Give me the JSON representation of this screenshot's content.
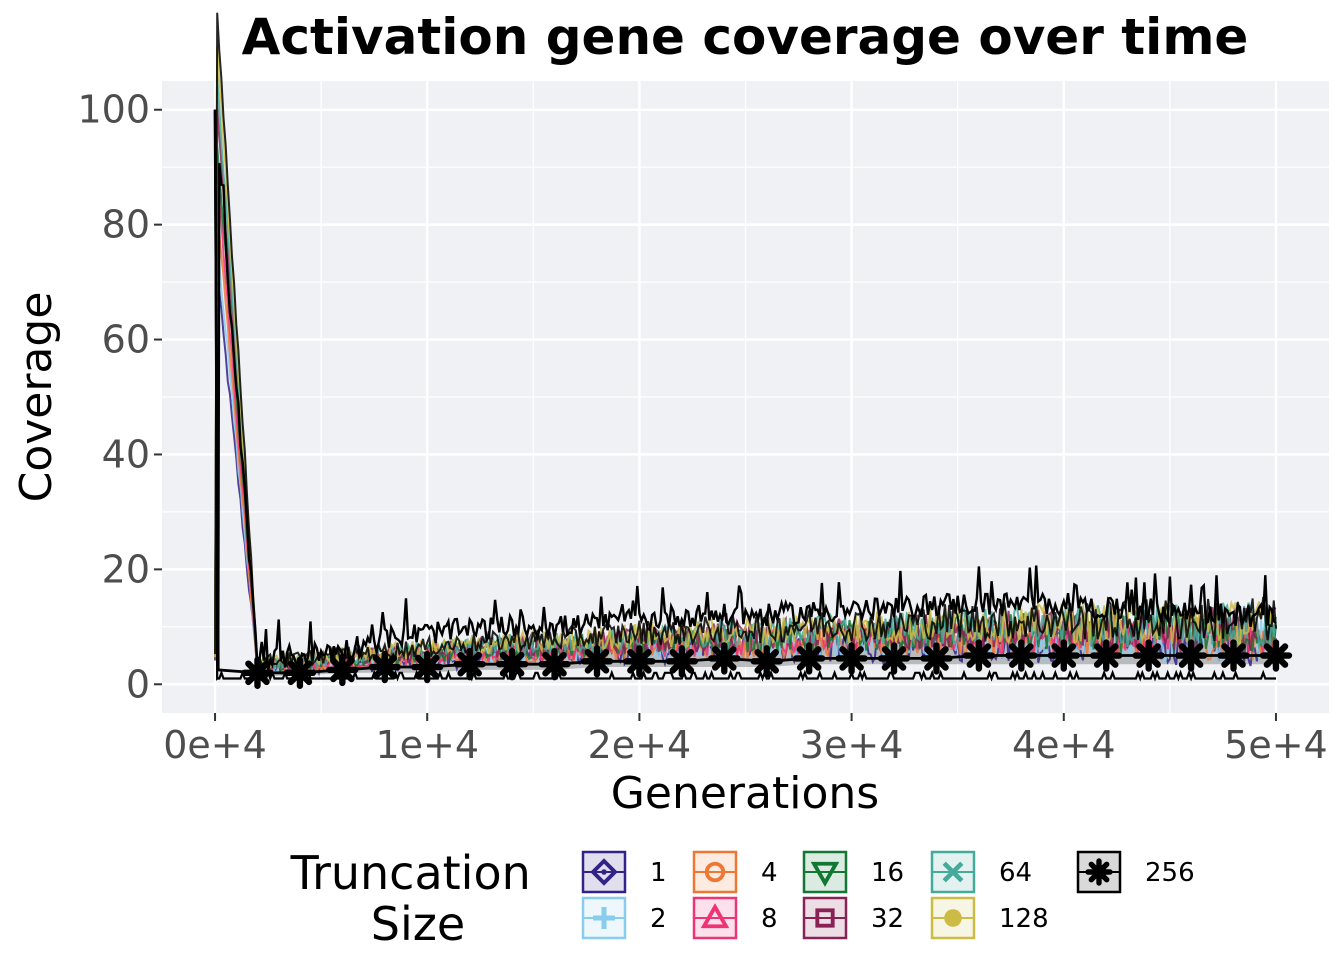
{
  "chart_data": {
    "type": "line",
    "title": "Activation gene coverage over time",
    "xlabel": "Generations",
    "ylabel": "Coverage",
    "xlim": [
      -2500,
      52500
    ],
    "ylim": [
      -5,
      105
    ],
    "x_ticks": [
      {
        "value": 0,
        "label": "0e+4"
      },
      {
        "value": 10000,
        "label": "1e+4"
      },
      {
        "value": 20000,
        "label": "2e+4"
      },
      {
        "value": 30000,
        "label": "3e+4"
      },
      {
        "value": 40000,
        "label": "4e+4"
      },
      {
        "value": 50000,
        "label": "5e+4"
      }
    ],
    "y_ticks": [
      {
        "value": 0,
        "label": "0"
      },
      {
        "value": 20,
        "label": "20"
      },
      {
        "value": 40,
        "label": "40"
      },
      {
        "value": 60,
        "label": "60"
      },
      {
        "value": 80,
        "label": "80"
      },
      {
        "value": 100,
        "label": "100"
      }
    ],
    "grid": true,
    "panel_background": "#f0f1f5",
    "legend": {
      "title_lines": [
        "Truncation",
        "Size"
      ],
      "position": "bottom"
    },
    "series": [
      {
        "name": "1",
        "color": "#332288",
        "marker": "diamond"
      },
      {
        "name": "2",
        "color": "#88ccee",
        "marker": "plus"
      },
      {
        "name": "4",
        "color": "#ee7733",
        "marker": "circle-open"
      },
      {
        "name": "8",
        "color": "#ee3377",
        "marker": "triangle-up"
      },
      {
        "name": "16",
        "color": "#117733",
        "marker": "triangle-down"
      },
      {
        "name": "32",
        "color": "#882255",
        "marker": "square"
      },
      {
        "name": "64",
        "color": "#44aa99",
        "marker": "x"
      },
      {
        "name": "128",
        "color": "#ccbb44",
        "marker": "circle"
      },
      {
        "name": "256",
        "color": "#000000",
        "marker": "asterisk"
      }
    ],
    "x": [
      0,
      2000,
      4000,
      6000,
      8000,
      10000,
      12000,
      14000,
      16000,
      18000,
      20000,
      22000,
      24000,
      26000,
      28000,
      30000,
      32000,
      34000,
      36000,
      38000,
      40000,
      42000,
      44000,
      46000,
      48000,
      50000
    ],
    "summary_256": {
      "median": [
        100,
        2,
        2,
        2.5,
        3,
        3,
        3.5,
        3.5,
        3.5,
        4,
        4,
        4,
        4.5,
        4,
        4.5,
        4.5,
        4.5,
        4.5,
        5,
        5,
        5,
        5,
        5,
        5,
        5,
        5
      ],
      "upper": [
        100,
        4,
        5,
        6,
        8,
        9,
        9.5,
        10,
        10,
        10.5,
        11,
        12,
        12,
        12,
        12.5,
        13,
        13,
        14,
        14,
        14,
        14,
        13,
        13,
        12.5,
        12,
        12
      ],
      "lower": [
        100,
        1,
        1,
        1,
        1,
        1,
        1,
        1,
        1,
        1,
        1,
        1,
        1,
        1,
        1,
        1,
        1,
        1,
        1,
        1,
        1,
        1,
        1,
        1,
        1,
        1
      ],
      "band_q1": [
        100,
        1.5,
        1.5,
        2,
        2,
        2,
        2.5,
        2.5,
        2.5,
        3,
        3,
        3,
        3,
        3,
        3.5,
        3.5,
        3.5,
        3.5,
        3.5,
        3.5,
        3.5,
        3.5,
        3.5,
        3.5,
        3.5,
        3.5
      ],
      "band_q3": [
        100,
        3,
        3.5,
        4,
        4.5,
        5,
        5.5,
        6,
        6,
        6.5,
        7,
        7,
        7.5,
        7.5,
        8,
        8,
        8,
        8.5,
        8.5,
        8.5,
        8.5,
        8.5,
        8.5,
        8.5,
        8.5,
        8.5
      ]
    }
  }
}
